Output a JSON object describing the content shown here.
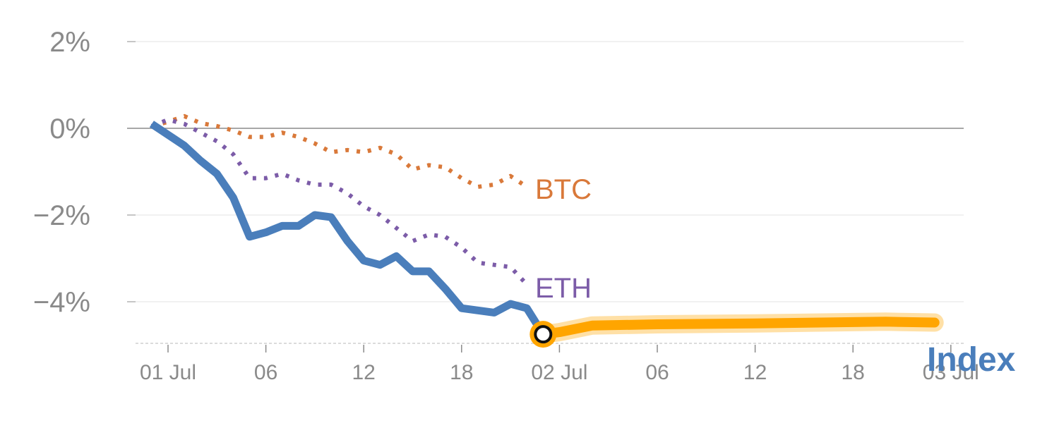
{
  "colors": {
    "index": "#4a7ebb",
    "btc": "#d9793a",
    "eth": "#7c5ca8",
    "live": "#ffa500",
    "axis_text": "#8a8a8a",
    "grid": "#e3e3e3",
    "zero_line": "#8c8c8c"
  },
  "chart_data": {
    "type": "line",
    "ylim": [
      -5,
      2.5
    ],
    "y_ticks": [
      {
        "value": 2,
        "label": "2%"
      },
      {
        "value": 0,
        "label": "0%"
      },
      {
        "value": -2,
        "label": "−2%"
      },
      {
        "value": -4,
        "label": "−4%"
      }
    ],
    "x_ticks": [
      {
        "t": 0,
        "label": "01 Jul"
      },
      {
        "t": 6,
        "label": "06"
      },
      {
        "t": 12,
        "label": "12"
      },
      {
        "t": 18,
        "label": "18"
      },
      {
        "t": 24,
        "label": "02 Jul"
      },
      {
        "t": 30,
        "label": "06"
      },
      {
        "t": 36,
        "label": "12"
      },
      {
        "t": 42,
        "label": "18"
      },
      {
        "t": 48,
        "label": "03 Jul"
      }
    ],
    "x_unit": "hours since 01 Jul 00:00",
    "grid": true,
    "series": [
      {
        "key": "btc",
        "name": "BTC",
        "style": "dotted",
        "x": [
          -1,
          0,
          1,
          2,
          3,
          4,
          5,
          6,
          7,
          8,
          9,
          10,
          11,
          12,
          13,
          14,
          15,
          16,
          17,
          18,
          19,
          20,
          21,
          22
        ],
        "y": [
          0.05,
          0.15,
          0.28,
          0.12,
          0.05,
          -0.05,
          -0.2,
          -0.2,
          -0.1,
          -0.2,
          -0.35,
          -0.55,
          -0.5,
          -0.55,
          -0.45,
          -0.6,
          -0.95,
          -0.85,
          -0.9,
          -1.15,
          -1.35,
          -1.3,
          -1.1,
          -1.35
        ]
      },
      {
        "key": "eth",
        "name": "ETH",
        "style": "dotted",
        "x": [
          -1,
          0,
          1,
          2,
          3,
          4,
          5,
          6,
          7,
          8,
          9,
          10,
          11,
          12,
          13,
          14,
          15,
          16,
          17,
          18,
          19,
          20,
          21,
          22
        ],
        "y": [
          0.05,
          0.2,
          0.1,
          -0.1,
          -0.3,
          -0.6,
          -1.15,
          -1.15,
          -1.05,
          -1.2,
          -1.3,
          -1.3,
          -1.5,
          -1.8,
          -2.0,
          -2.3,
          -2.6,
          -2.45,
          -2.5,
          -2.75,
          -3.1,
          -3.15,
          -3.2,
          -3.6
        ]
      },
      {
        "key": "index",
        "name": "Index",
        "style": "solid",
        "x": [
          -1,
          0,
          1,
          2,
          3,
          4,
          5,
          6,
          7,
          8,
          9,
          10,
          11,
          12,
          13,
          14,
          15,
          16,
          17,
          18,
          19,
          20,
          21,
          22,
          23
        ],
        "y": [
          0.1,
          -0.15,
          -0.4,
          -0.75,
          -1.05,
          -1.6,
          -2.5,
          -2.4,
          -2.25,
          -2.25,
          -2.0,
          -2.05,
          -2.6,
          -3.05,
          -3.15,
          -2.95,
          -3.3,
          -3.3,
          -3.7,
          -4.15,
          -4.2,
          -4.25,
          -4.05,
          -4.15,
          -4.75
        ]
      },
      {
        "key": "live",
        "style": "band",
        "x": [
          23,
          24,
          26,
          30,
          36,
          42,
          44,
          47
        ],
        "y": [
          -4.75,
          -4.7,
          -4.55,
          -4.52,
          -4.5,
          -4.47,
          -4.46,
          -4.48
        ]
      }
    ],
    "marker": {
      "x": 23,
      "y": -4.75
    }
  }
}
